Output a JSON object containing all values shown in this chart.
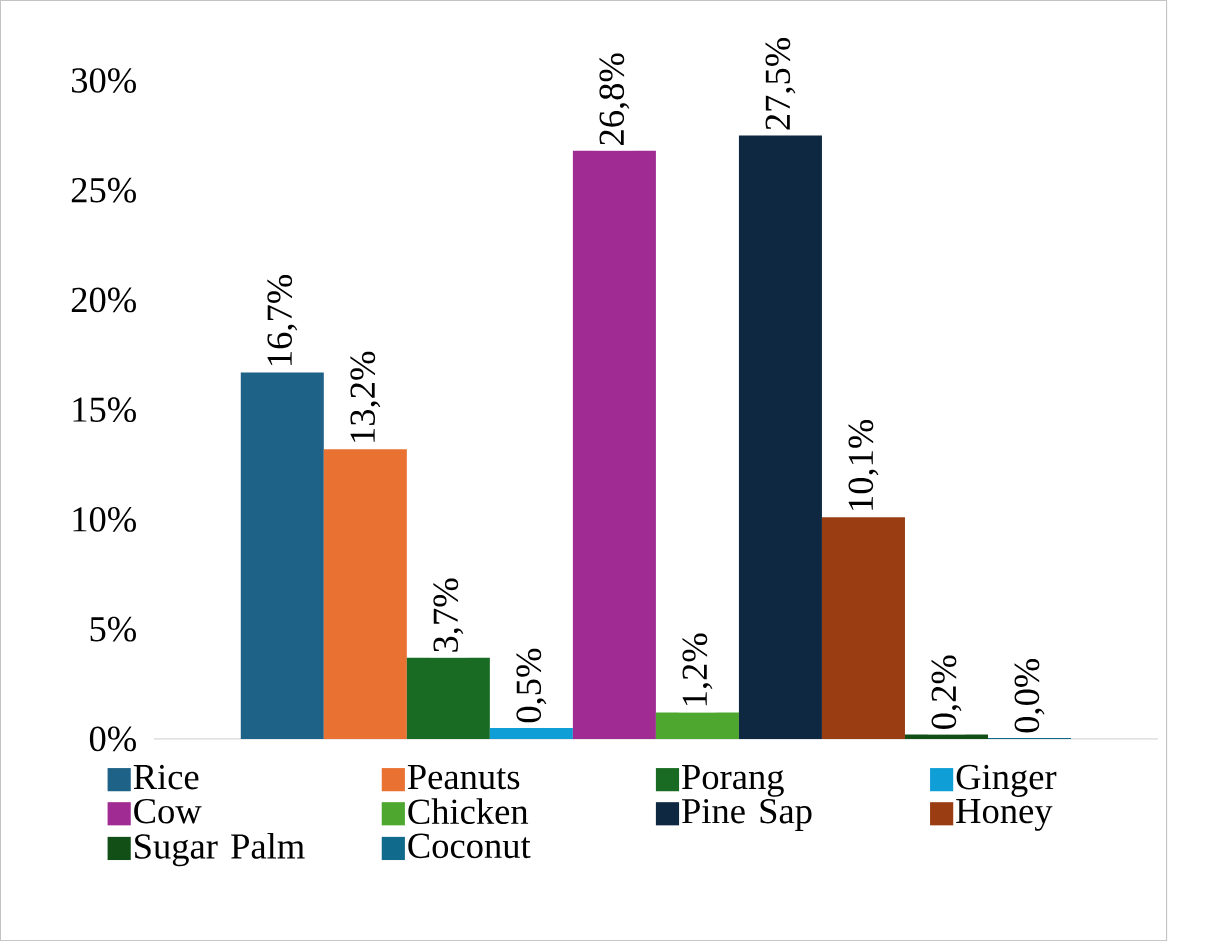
{
  "chart_data": {
    "type": "bar",
    "categories": [
      null
    ],
    "series": [
      {
        "name": "Rice",
        "color": "#1f6287",
        "values": [
          16.7
        ],
        "value_labels": [
          "16,7%"
        ]
      },
      {
        "name": "Peanuts",
        "color": "#e97132",
        "values": [
          13.2
        ],
        "value_labels": [
          "13,2%"
        ]
      },
      {
        "name": "Porang",
        "color": "#196b24",
        "values": [
          3.7
        ],
        "value_labels": [
          "3,7%"
        ]
      },
      {
        "name": "Ginger",
        "color": "#0f9ed5",
        "values": [
          0.5
        ],
        "value_labels": [
          "0,5%"
        ]
      },
      {
        "name": "Cow",
        "color": "#a02b93",
        "values": [
          26.8
        ],
        "value_labels": [
          "26,8%"
        ]
      },
      {
        "name": "Chicken",
        "color": "#4ea72e",
        "values": [
          1.2
        ],
        "value_labels": [
          "1,2%"
        ]
      },
      {
        "name": "Pine Sap",
        "color": "#0e2841",
        "values": [
          27.5
        ],
        "value_labels": [
          "27,5%"
        ]
      },
      {
        "name": "Honey",
        "color": "#9b3d12",
        "values": [
          10.1
        ],
        "value_labels": [
          "10,1%"
        ]
      },
      {
        "name": "Sugar Palm",
        "color": "#124f16",
        "values": [
          0.2
        ],
        "value_labels": [
          "0,2%"
        ]
      },
      {
        "name": "Coconut",
        "color": "#0f6a8c",
        "values": [
          0.04
        ],
        "value_labels": [
          "0,0%"
        ]
      }
    ],
    "ylim": [
      0,
      30
    ],
    "yticks": [
      {
        "value": 0,
        "label": "0%"
      },
      {
        "value": 5,
        "label": "5%"
      },
      {
        "value": 10,
        "label": "10%"
      },
      {
        "value": 15,
        "label": "15%"
      },
      {
        "value": 20,
        "label": "20%"
      },
      {
        "value": 25,
        "label": "25%"
      },
      {
        "value": 30,
        "label": "30%"
      }
    ],
    "legend": "bottom"
  }
}
